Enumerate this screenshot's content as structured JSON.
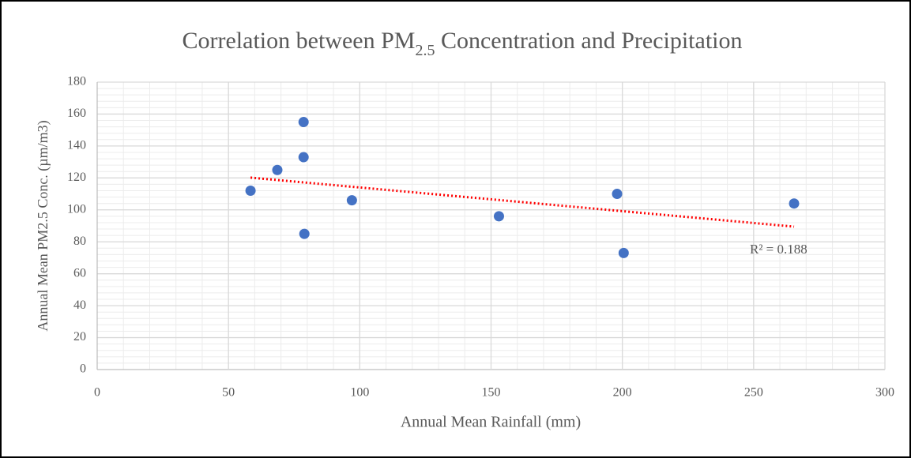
{
  "chart_data": {
    "type": "scatter",
    "title": {
      "before": "Correlation between PM",
      "subscript": "2.5",
      "after": " Concentration and Precipitation"
    },
    "xlabel": "Annual Mean Rainfall (mm)",
    "ylabel": "Annual Mean PM2.5 Conc. (µm/m3)",
    "x": [
      58.4,
      68.6,
      78.6,
      78.6,
      78.9,
      97.0,
      153.0,
      198.0,
      200.5,
      265.4
    ],
    "values": [
      112,
      125,
      155,
      133,
      85,
      106,
      96,
      110,
      73,
      104
    ],
    "color": "#4472c4",
    "trendline": {
      "x": [
        58.4,
        265.4
      ],
      "y": [
        120.2,
        89.5
      ],
      "color": "#ff0000"
    },
    "annotation": "R² = 0.188",
    "xlim": [
      0,
      300
    ],
    "ylim": [
      0,
      180
    ],
    "xticks": [
      0,
      50,
      100,
      150,
      200,
      250,
      300
    ],
    "yticks": [
      0,
      20,
      40,
      60,
      80,
      100,
      120,
      140,
      160,
      180
    ],
    "minor_step": {
      "x": 10,
      "y": 4
    },
    "grid": true
  }
}
